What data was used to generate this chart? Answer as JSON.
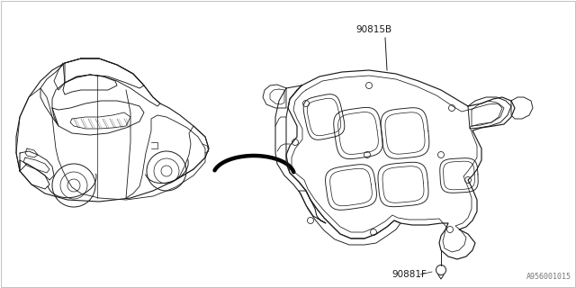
{
  "bg_color": "#ffffff",
  "line_color": "#1a1a1a",
  "label_90815B": "90815B",
  "label_90881F": "90881F",
  "watermark": "A956001015",
  "car_color": "#333333",
  "insulator_color": "#333333"
}
